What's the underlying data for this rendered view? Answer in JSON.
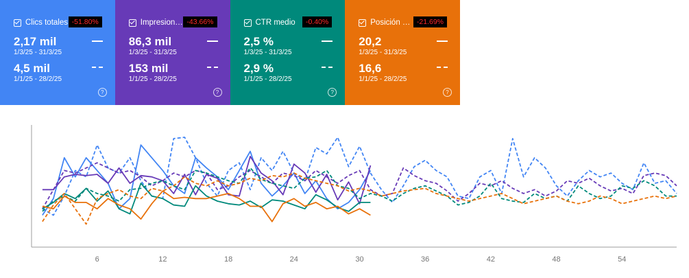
{
  "cards": [
    {
      "title": "Clics totales",
      "badge": "-51.80%",
      "value_current": "2,17 mil",
      "range_current": "1/3/25 - 31/3/25",
      "value_previous": "4,5 mil",
      "range_previous": "1/1/25 - 28/2/25",
      "color": "#4285f4"
    },
    {
      "title": "Impresiones totales",
      "badge": "-43.66%",
      "value_current": "86,3 mil",
      "range_current": "1/3/25 - 31/3/25",
      "value_previous": "153 mil",
      "range_previous": "1/1/25 - 28/2/25",
      "color": "#673ab7"
    },
    {
      "title": "CTR medio",
      "badge": "-0.40%",
      "value_current": "2,5 %",
      "range_current": "1/3/25 - 31/3/25",
      "value_previous": "2,9 %",
      "range_previous": "1/1/25 - 28/2/25",
      "color": "#00897b"
    },
    {
      "title": "Posición media",
      "badge": "-21.69%",
      "value_current": "20,2",
      "range_current": "1/3/25 - 31/3/25",
      "value_previous": "16,6",
      "range_previous": "1/1/25 - 28/2/25",
      "color": "#e8710a"
    }
  ],
  "help_glyph": "?",
  "chart_data": {
    "type": "line",
    "x_ticks": [
      6,
      12,
      18,
      24,
      30,
      36,
      42,
      48,
      54
    ],
    "xlim": [
      0,
      59
    ],
    "ylim": [
      0,
      100
    ],
    "grid": false,
    "series": [
      {
        "color": "#4285f4",
        "style": "solid",
        "x": [
          1,
          2,
          3,
          4,
          5,
          6,
          7,
          8,
          9,
          10,
          11,
          12,
          13,
          14,
          15,
          16,
          17,
          18,
          19,
          20,
          21,
          22,
          23,
          24,
          25,
          26,
          27,
          28,
          29,
          30,
          31
        ],
        "values": [
          25,
          38,
          70,
          55,
          70,
          60,
          50,
          30,
          38,
          80,
          70,
          60,
          48,
          42,
          70,
          62,
          55,
          45,
          60,
          75,
          50,
          40,
          48,
          58,
          42,
          52,
          38,
          30,
          35,
          45,
          60
        ]
      },
      {
        "color": "#4285f4",
        "style": "dashed",
        "x": [
          1,
          2,
          3,
          4,
          5,
          6,
          7,
          8,
          9,
          10,
          11,
          12,
          13,
          14,
          15,
          16,
          17,
          18,
          19,
          20,
          21,
          22,
          23,
          24,
          25,
          26,
          27,
          28,
          29,
          30,
          31,
          32,
          33,
          34,
          35,
          36,
          37,
          38,
          39,
          40,
          41,
          42,
          43,
          44,
          45,
          46,
          47,
          48,
          49,
          50,
          51,
          52,
          53,
          54,
          55,
          56,
          57,
          58,
          59
        ],
        "values": [
          30,
          25,
          40,
          60,
          55,
          80,
          62,
          58,
          70,
          52,
          40,
          38,
          85,
          86,
          70,
          50,
          40,
          60,
          66,
          45,
          70,
          60,
          75,
          58,
          52,
          78,
          73,
          86,
          63,
          79,
          58,
          45,
          35,
          48,
          63,
          68,
          60,
          55,
          40,
          38,
          55,
          60,
          42,
          85,
          55,
          70,
          62,
          48,
          40,
          52,
          60,
          55,
          58,
          50,
          45,
          66,
          50,
          52,
          42
        ]
      },
      {
        "color": "#673ab7",
        "style": "solid",
        "x": [
          1,
          2,
          3,
          4,
          5,
          6,
          7,
          8,
          9,
          10,
          11,
          12,
          13,
          14,
          15,
          16,
          17,
          18,
          19,
          20,
          21,
          22,
          23,
          24,
          25,
          26,
          27,
          28,
          29,
          30,
          31
        ],
        "values": [
          45,
          45,
          55,
          57,
          56,
          57,
          50,
          62,
          50,
          56,
          55,
          52,
          42,
          57,
          41,
          57,
          54,
          41,
          40,
          71,
          58,
          52,
          41,
          65,
          58,
          43,
          57,
          37,
          51,
          34,
          64
        ]
      },
      {
        "color": "#673ab7",
        "style": "dashed",
        "x": [
          1,
          2,
          3,
          4,
          5,
          6,
          7,
          8,
          9,
          10,
          11,
          12,
          13,
          14,
          15,
          16,
          17,
          18,
          19,
          20,
          21,
          22,
          23,
          24,
          25,
          26,
          27,
          28,
          29,
          30,
          31,
          32,
          33,
          34,
          35,
          36,
          37,
          38,
          39,
          40,
          41,
          42,
          43,
          44,
          45,
          46,
          47,
          48,
          49,
          50,
          51,
          52,
          53,
          54,
          55,
          56,
          57,
          58,
          59
        ],
        "values": [
          30,
          45,
          60,
          58,
          62,
          66,
          62,
          58,
          60,
          55,
          48,
          52,
          58,
          55,
          60,
          58,
          45,
          48,
          55,
          60,
          55,
          50,
          58,
          56,
          52,
          60,
          55,
          50,
          56,
          60,
          45,
          40,
          42,
          62,
          56,
          52,
          50,
          44,
          36,
          42,
          50,
          48,
          52,
          46,
          42,
          45,
          40,
          44,
          52,
          50,
          54,
          48,
          44,
          46,
          42,
          56,
          58,
          56,
          48
        ]
      },
      {
        "color": "#00897b",
        "style": "solid",
        "x": [
          1,
          2,
          3,
          4,
          5,
          6,
          7,
          8,
          9,
          10,
          11,
          12,
          13,
          14,
          15,
          16,
          17,
          18,
          19,
          20,
          21,
          22,
          23,
          24,
          25,
          26,
          27,
          28,
          29,
          30,
          31
        ],
        "values": [
          30,
          35,
          42,
          38,
          46,
          36,
          44,
          30,
          26,
          50,
          40,
          38,
          33,
          32,
          48,
          40,
          36,
          34,
          33,
          36,
          31,
          37,
          36,
          33,
          30,
          41,
          37,
          31,
          28,
          35,
          35
        ]
      },
      {
        "color": "#00897b",
        "style": "dashed",
        "x": [
          1,
          2,
          3,
          4,
          5,
          6,
          7,
          8,
          9,
          10,
          11,
          12,
          13,
          14,
          15,
          16,
          17,
          18,
          19,
          20,
          21,
          22,
          23,
          24,
          25,
          26,
          27,
          28,
          29,
          30,
          31,
          32,
          33,
          34,
          35,
          36,
          37,
          38,
          39,
          40,
          41,
          42,
          43,
          44,
          45,
          46,
          47,
          48,
          49,
          50,
          51,
          52,
          53,
          54,
          55,
          56,
          57,
          58,
          59
        ],
        "values": [
          28,
          36,
          40,
          36,
          46,
          42,
          40,
          36,
          45,
          46,
          50,
          52,
          48,
          45,
          60,
          58,
          55,
          52,
          50,
          62,
          53,
          50,
          48,
          46,
          54,
          55,
          60,
          48,
          46,
          38,
          42,
          40,
          36,
          42,
          46,
          48,
          44,
          40,
          33,
          35,
          40,
          50,
          38,
          36,
          35,
          42,
          38,
          40,
          36,
          48,
          42,
          38,
          40,
          48,
          46,
          52,
          48,
          40,
          40
        ]
      },
      {
        "color": "#e8710a",
        "style": "solid",
        "x": [
          1,
          2,
          3,
          4,
          5,
          6,
          7,
          8,
          9,
          10,
          11,
          12,
          13,
          14,
          15,
          16,
          17,
          18,
          19,
          20,
          21,
          22,
          23,
          24,
          25,
          26,
          27,
          28,
          29,
          30,
          31
        ],
        "values": [
          32,
          30,
          40,
          35,
          35,
          30,
          38,
          33,
          30,
          22,
          34,
          44,
          38,
          39,
          38,
          38,
          40,
          42,
          38,
          32,
          32,
          20,
          34,
          38,
          32,
          35,
          30,
          32,
          26,
          30,
          25
        ]
      },
      {
        "color": "#e8710a",
        "style": "dashed",
        "x": [
          1,
          2,
          3,
          4,
          5,
          6,
          7,
          8,
          9,
          10,
          11,
          12,
          13,
          14,
          15,
          16,
          17,
          18,
          19,
          20,
          21,
          22,
          23,
          24,
          25,
          26,
          27,
          28,
          29,
          30,
          31,
          32,
          33,
          34,
          35,
          36,
          37,
          38,
          39,
          40,
          41,
          42,
          43,
          44,
          45,
          46,
          47,
          48,
          49,
          50,
          51,
          52,
          53,
          54,
          55,
          56,
          57,
          58,
          59
        ],
        "values": [
          20,
          33,
          42,
          30,
          18,
          38,
          42,
          45,
          40,
          38,
          46,
          44,
          48,
          55,
          50,
          48,
          52,
          48,
          50,
          54,
          52,
          56,
          55,
          58,
          54,
          52,
          50,
          48,
          44,
          46,
          44,
          40,
          42,
          44,
          45,
          46,
          42,
          40,
          38,
          36,
          38,
          40,
          42,
          38,
          34,
          36,
          38,
          40,
          36,
          34,
          36,
          40,
          38,
          34,
          36,
          38,
          40,
          38,
          40
        ]
      }
    ]
  }
}
